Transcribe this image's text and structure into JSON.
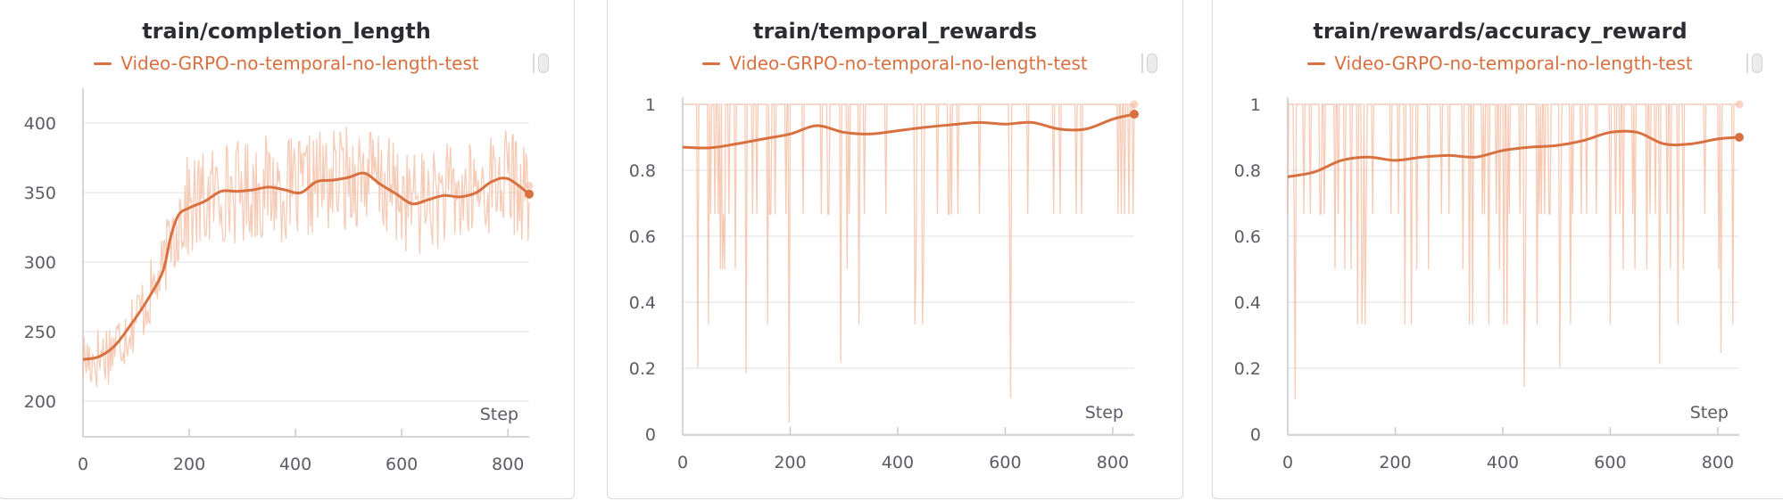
{
  "colors": {
    "series": "#d8703f",
    "raw": "#f3b99d",
    "grid": "#ececef"
  },
  "chart_data": [
    {
      "type": "line",
      "title": "train/completion_length",
      "legend": "Video-GRPO-no-temporal-no-length-test",
      "xlabel": "Step",
      "xlim": [
        0,
        840
      ],
      "ylim": [
        175,
        420
      ],
      "xticks": [
        0,
        200,
        400,
        600,
        800
      ],
      "yticks": [
        200,
        250,
        300,
        350,
        400
      ],
      "ytick_labels": [
        "200",
        "250",
        "300",
        "350",
        "400"
      ],
      "series": [
        {
          "smoothed": {
            "x": [
              0,
              30,
              60,
              90,
              120,
              150,
              165,
              180,
              200,
              230,
              260,
              290,
              320,
              350,
              380,
              410,
              440,
              470,
              500,
              530,
              560,
              590,
              620,
              650,
              680,
              710,
              740,
              770,
              800,
              840
            ],
            "y": [
              230,
              232,
              240,
              255,
              272,
              293,
              318,
              334,
              339,
              344,
              351,
              351,
              352,
              354,
              352,
              350,
              358,
              359,
              361,
              364,
              356,
              349,
              342,
              345,
              348,
              347,
              350,
              358,
              360,
              349
            ]
          },
          "raw_range": [
            175,
            415
          ],
          "raw_last": 355
        }
      ]
    },
    {
      "type": "line",
      "title": "train/temporal_rewards",
      "legend": "Video-GRPO-no-temporal-no-length-test",
      "xlabel": "Step",
      "xlim": [
        0,
        840
      ],
      "ylim": [
        0,
        1
      ],
      "xticks": [
        0,
        200,
        400,
        600,
        800
      ],
      "yticks": [
        0,
        0.2,
        0.4,
        0.6,
        0.8,
        1
      ],
      "ytick_labels": [
        "0",
        "0.2",
        "0.4",
        "0.6",
        "0.8",
        "1"
      ],
      "series": [
        {
          "smoothed": {
            "x": [
              0,
              50,
              100,
              150,
              200,
              250,
              300,
              350,
              400,
              450,
              500,
              550,
              600,
              650,
              700,
              750,
              800,
              840
            ],
            "y": [
              0.87,
              0.868,
              0.88,
              0.895,
              0.91,
              0.935,
              0.915,
              0.91,
              0.92,
              0.93,
              0.938,
              0.945,
              0.94,
              0.945,
              0.925,
              0.925,
              0.955,
              0.97
            ]
          },
          "raw_range": [
            0,
            1
          ],
          "raw_last": 1
        }
      ]
    },
    {
      "type": "line",
      "title": "train/rewards/accuracy_reward",
      "legend": "Video-GRPO-no-temporal-no-length-test",
      "xlabel": "Step",
      "xlim": [
        0,
        840
      ],
      "ylim": [
        0,
        1
      ],
      "xticks": [
        0,
        200,
        400,
        600,
        800
      ],
      "yticks": [
        0,
        0.2,
        0.4,
        0.6,
        0.8,
        1
      ],
      "ytick_labels": [
        "0",
        "0.2",
        "0.4",
        "0.6",
        "0.8",
        "1"
      ],
      "series": [
        {
          "smoothed": {
            "x": [
              0,
              50,
              100,
              150,
              200,
              250,
              300,
              350,
              400,
              450,
              500,
              550,
              600,
              650,
              700,
              750,
              800,
              840
            ],
            "y": [
              0.78,
              0.795,
              0.83,
              0.84,
              0.83,
              0.84,
              0.845,
              0.84,
              0.86,
              0.87,
              0.875,
              0.89,
              0.915,
              0.915,
              0.88,
              0.88,
              0.895,
              0.9
            ]
          },
          "raw_range": [
            0,
            1
          ],
          "raw_last": 1
        }
      ]
    }
  ]
}
